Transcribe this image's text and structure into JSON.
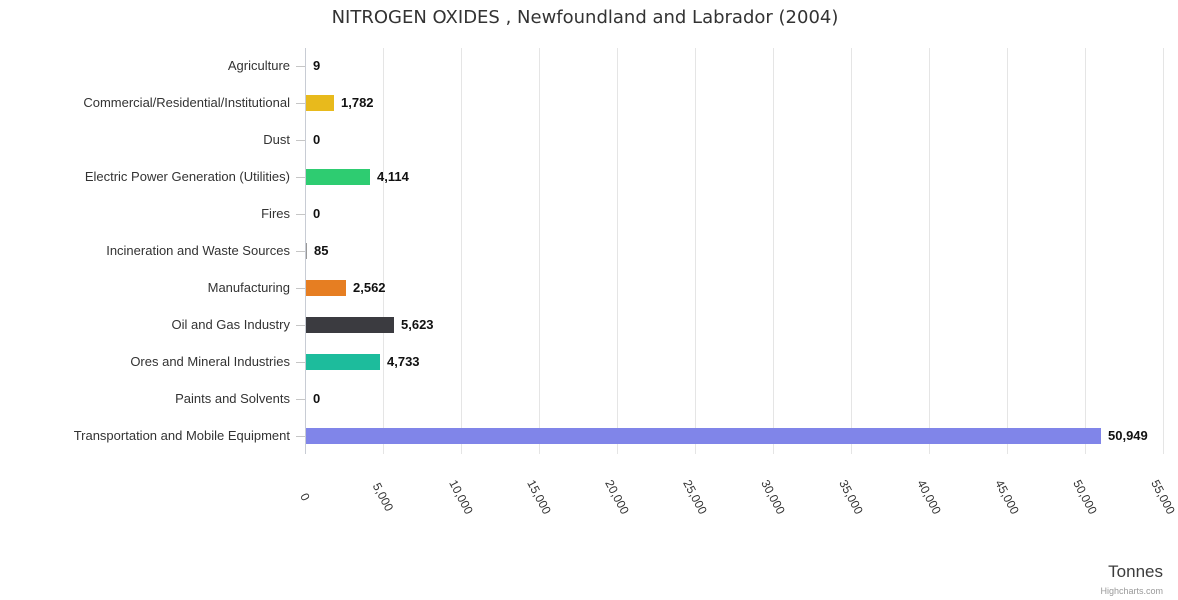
{
  "title": "NITROGEN OXIDES , Newfoundland and Labrador (2004)",
  "axis_title": "Tonnes",
  "credit": "Highcharts.com",
  "chart_data": {
    "type": "bar",
    "orientation": "horizontal",
    "title": "NITROGEN OXIDES , Newfoundland and Labrador (2004)",
    "categories": [
      "Agriculture",
      "Commercial/Residential/Institutional",
      "Dust",
      "Electric Power Generation (Utilities)",
      "Fires",
      "Incineration and Waste Sources",
      "Manufacturing",
      "Oil and Gas Industry",
      "Ores and Mineral Industries",
      "Paints and Solvents",
      "Transportation and Mobile Equipment"
    ],
    "values": [
      9,
      1782,
      0,
      4114,
      0,
      85,
      2562,
      5623,
      4733,
      0,
      50949
    ],
    "value_labels": [
      "9",
      "1,782",
      "0",
      "4,114",
      "0",
      "85",
      "2,562",
      "5,623",
      "4,733",
      "0",
      "50,949"
    ],
    "bar_colors": [
      "#999999",
      "#e8ba1c",
      "#999999",
      "#2ecc71",
      "#999999",
      "#999999",
      "#e67e22",
      "#3b3b40",
      "#1dbc9c",
      "#999999",
      "#8085e9"
    ],
    "xlabel": "Tonnes",
    "ylabel": "",
    "xlim": [
      0,
      55000
    ],
    "x_ticks": [
      0,
      5000,
      10000,
      15000,
      20000,
      25000,
      30000,
      35000,
      40000,
      45000,
      50000,
      55000
    ],
    "x_tick_labels": [
      "0",
      "5,000",
      "10,000",
      "15,000",
      "20,000",
      "25,000",
      "30,000",
      "35,000",
      "40,000",
      "45,000",
      "50,000",
      "55,000"
    ],
    "grid": true,
    "legend": false
  }
}
